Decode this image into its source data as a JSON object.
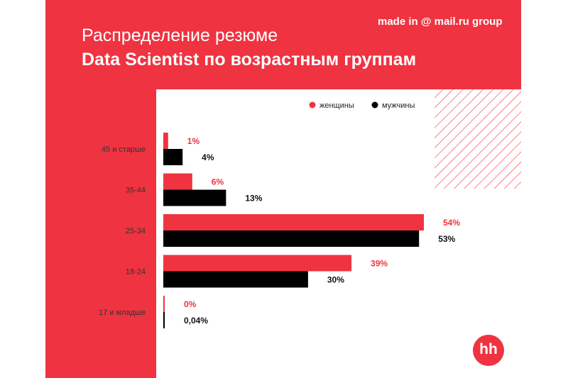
{
  "header": {
    "title_line1": "Распределение резюме",
    "title_line2": "Data Scientist по возрастным группам",
    "brand": "made in @ mail.ru group",
    "logo_text": "hh"
  },
  "colors": {
    "women": "#ef3340",
    "men": "#000000",
    "label_women": "#ef3340",
    "label_men": "#111111",
    "category_text": "#333333"
  },
  "chart_data": {
    "type": "bar",
    "orientation": "horizontal",
    "title": "Распределение резюме Data Scientist по возрастным группам",
    "xlim": [
      0,
      54
    ],
    "categories": [
      "45 и старше",
      "35-44",
      "25-34",
      "18-24",
      "17 и младше"
    ],
    "series": [
      {
        "name": "женщины",
        "values": [
          1,
          6,
          54,
          39,
          0
        ],
        "labels": [
          "1%",
          "6%",
          "54%",
          "39%",
          "0%"
        ]
      },
      {
        "name": "мужчины",
        "values": [
          4,
          13,
          53,
          30,
          0.04
        ],
        "labels": [
          "4%",
          "13%",
          "53%",
          "30%",
          "0,04%"
        ]
      }
    ],
    "legend": {
      "position": "top-right"
    }
  }
}
